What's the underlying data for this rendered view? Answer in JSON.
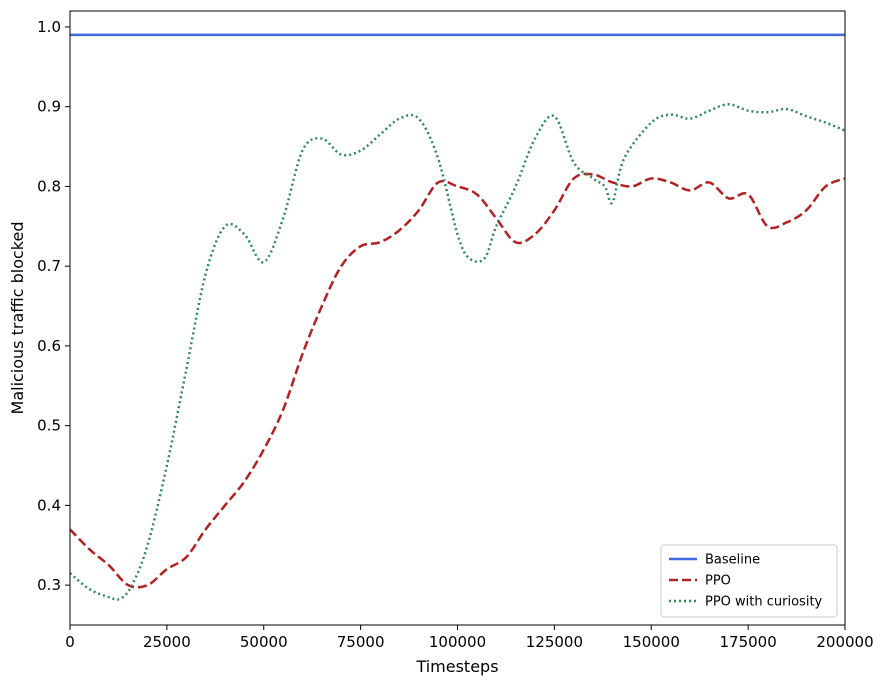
{
  "chart_data": {
    "type": "line",
    "title": "",
    "xlabel": "Timesteps",
    "ylabel": "Malicious traffic blocked",
    "xlim": [
      0,
      200000
    ],
    "ylim": [
      0.25,
      1.02
    ],
    "xticks": [
      0,
      25000,
      50000,
      75000,
      100000,
      125000,
      150000,
      175000,
      200000
    ],
    "xtick_labels": [
      "0",
      "25000",
      "50000",
      "75000",
      "100000",
      "125000",
      "150000",
      "175000",
      "200000"
    ],
    "yticks": [
      0.3,
      0.4,
      0.5,
      0.6,
      0.7,
      0.8,
      0.9,
      1.0
    ],
    "ytick_labels": [
      "0.3",
      "0.4",
      "0.5",
      "0.6",
      "0.7",
      "0.8",
      "0.9",
      "1.0"
    ],
    "grid": false,
    "legend_position": "lower-right",
    "series": [
      {
        "name": "Baseline",
        "color": "#4169e1",
        "style": "solid",
        "x": [
          0,
          200000
        ],
        "y": [
          0.99,
          0.99
        ]
      },
      {
        "name": "PPO",
        "color": "#b22222",
        "style": "dashed",
        "x": [
          0,
          5000,
          10000,
          15000,
          20000,
          25000,
          30000,
          35000,
          40000,
          45000,
          50000,
          55000,
          60000,
          65000,
          70000,
          75000,
          80000,
          85000,
          90000,
          95000,
          100000,
          105000,
          110000,
          115000,
          120000,
          125000,
          130000,
          135000,
          140000,
          145000,
          150000,
          155000,
          160000,
          165000,
          170000,
          175000,
          180000,
          185000,
          190000,
          195000,
          200000
        ],
        "y": [
          0.37,
          0.345,
          0.325,
          0.3,
          0.3,
          0.32,
          0.335,
          0.37,
          0.4,
          0.43,
          0.47,
          0.52,
          0.59,
          0.65,
          0.7,
          0.725,
          0.73,
          0.745,
          0.77,
          0.805,
          0.8,
          0.79,
          0.76,
          0.73,
          0.74,
          0.77,
          0.81,
          0.815,
          0.805,
          0.8,
          0.81,
          0.805,
          0.795,
          0.805,
          0.785,
          0.79,
          0.75,
          0.755,
          0.77,
          0.8,
          0.81
        ]
      },
      {
        "name": "PPO with curiosity",
        "color": "#2e8b57",
        "style": "dotted",
        "x": [
          0,
          5000,
          10000,
          13000,
          16000,
          20000,
          25000,
          30000,
          35000,
          40000,
          45000,
          50000,
          55000,
          60000,
          65000,
          70000,
          75000,
          80000,
          85000,
          90000,
          95000,
          100000,
          103000,
          107000,
          110000,
          115000,
          120000,
          125000,
          130000,
          135000,
          138000,
          140000,
          143000,
          150000,
          155000,
          160000,
          165000,
          170000,
          175000,
          180000,
          185000,
          190000,
          195000,
          200000
        ],
        "y": [
          0.315,
          0.295,
          0.285,
          0.283,
          0.3,
          0.35,
          0.45,
          0.57,
          0.69,
          0.75,
          0.74,
          0.705,
          0.76,
          0.845,
          0.86,
          0.84,
          0.845,
          0.865,
          0.885,
          0.885,
          0.835,
          0.74,
          0.71,
          0.71,
          0.75,
          0.8,
          0.86,
          0.888,
          0.83,
          0.81,
          0.8,
          0.78,
          0.835,
          0.88,
          0.89,
          0.885,
          0.895,
          0.903,
          0.895,
          0.893,
          0.897,
          0.888,
          0.88,
          0.87
        ]
      }
    ]
  }
}
